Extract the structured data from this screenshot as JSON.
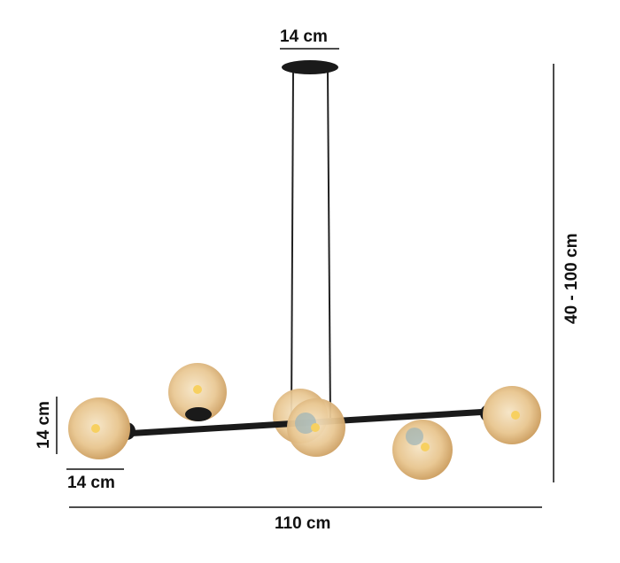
{
  "dimensions": {
    "canopy_width": "14 cm",
    "height_range": "40 - 100 cm",
    "total_width": "110 cm",
    "globe_height": "14 cm",
    "globe_width": "14 cm"
  },
  "colors": {
    "globe": "#e8c99a",
    "metal": "#1a1a1a",
    "line": "#111111"
  }
}
